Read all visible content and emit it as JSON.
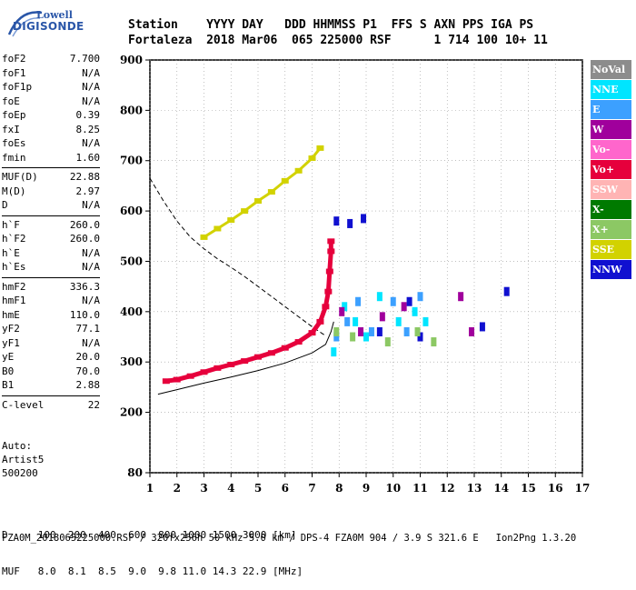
{
  "logo": {
    "line1": "Lowell",
    "line2": "DIGISONDE"
  },
  "header": {
    "row1": "Station    YYYY DAY   DDD HHMMSS P1  FFS S AXN PPS IGA PS",
    "row2": "Fortaleza  2018 Mar06  065 225000 RSF      1 714 100 10+ 11"
  },
  "params": [
    [
      {
        "k": "foF2",
        "v": "7.700"
      },
      {
        "k": "foF1",
        "v": "N/A"
      },
      {
        "k": "foF1p",
        "v": "N/A"
      },
      {
        "k": "foE",
        "v": "N/A"
      },
      {
        "k": "foEp",
        "v": "0.39"
      },
      {
        "k": "fxI",
        "v": "8.25"
      },
      {
        "k": "foEs",
        "v": "N/A"
      },
      {
        "k": "fmin",
        "v": "1.60"
      }
    ],
    [
      {
        "k": "MUF(D)",
        "v": "22.88"
      },
      {
        "k": "M(D)",
        "v": "2.97"
      },
      {
        "k": "D",
        "v": "N/A"
      }
    ],
    [
      {
        "k": "h`F",
        "v": "260.0"
      },
      {
        "k": "h`F2",
        "v": "260.0"
      },
      {
        "k": "h`E",
        "v": "N/A"
      },
      {
        "k": "h`Es",
        "v": "N/A"
      }
    ],
    [
      {
        "k": "hmF2",
        "v": "336.3"
      },
      {
        "k": "hmF1",
        "v": "N/A"
      },
      {
        "k": "hmE",
        "v": "110.0"
      },
      {
        "k": "yF2",
        "v": "77.1"
      },
      {
        "k": "yF1",
        "v": "N/A"
      },
      {
        "k": "yE",
        "v": "20.0"
      },
      {
        "k": "B0",
        "v": "70.0"
      },
      {
        "k": "B1",
        "v": "2.88"
      }
    ],
    [
      {
        "k": "C-level",
        "v": "22"
      }
    ]
  ],
  "auto": [
    "Auto:",
    "Artist5",
    "500200"
  ],
  "legend": [
    {
      "label": "NoVal",
      "color": "#8c8c8c"
    },
    {
      "label": "NNE",
      "color": "#00e5ff"
    },
    {
      "label": "E",
      "color": "#3ca0ff"
    },
    {
      "label": "W",
      "color": "#a0009c"
    },
    {
      "label": "Vo-",
      "color": "#ff66cc"
    },
    {
      "label": "Vo+",
      "color": "#e6003c"
    },
    {
      "label": "SSW",
      "color": "#ffb4b4"
    },
    {
      "label": "X-",
      "color": "#007a00"
    },
    {
      "label": "X+",
      "color": "#8cc864"
    },
    {
      "label": "SSE",
      "color": "#d2d200"
    },
    {
      "label": "NNW",
      "color": "#1010d0"
    }
  ],
  "footer": {
    "row1": "D     100  200  400  600  800 1000 1500 3000 [km]",
    "row2": "MUF   8.0  8.1  8.5  9.0  9.8 11.0 14.3 22.9 [MHz]"
  },
  "filename": "FZA0M_2018065225000.RSF / 320fx256h 50 kHz 5.0 km / DPS-4 FZA0M 904 / 3.9 S 321.6 E   Ion2Png 1.3.20",
  "chart_data": {
    "type": "scatter",
    "title": "",
    "xlabel": "",
    "ylabel": "",
    "xlim": [
      1,
      17
    ],
    "ylim": [
      80,
      900
    ],
    "x_ticks": [
      1,
      2,
      3,
      4,
      5,
      6,
      7,
      8,
      9,
      10,
      11,
      12,
      13,
      14,
      15,
      16,
      17
    ],
    "y_ticks": [
      80,
      200,
      300,
      400,
      500,
      600,
      700,
      800,
      900
    ],
    "grid": "dotted",
    "legend_placement": "right",
    "series": [
      {
        "name": "Vo+",
        "values": [
          [
            1.6,
            262
          ],
          [
            2.0,
            265
          ],
          [
            2.5,
            272
          ],
          [
            3.0,
            280
          ],
          [
            3.5,
            288
          ],
          [
            4.0,
            295
          ],
          [
            4.5,
            302
          ],
          [
            5.0,
            310
          ],
          [
            5.5,
            318
          ],
          [
            6.0,
            328
          ],
          [
            6.5,
            340
          ],
          [
            7.0,
            358
          ],
          [
            7.3,
            380
          ],
          [
            7.5,
            410
          ],
          [
            7.6,
            440
          ],
          [
            7.65,
            480
          ],
          [
            7.7,
            520
          ],
          [
            7.7,
            540
          ]
        ]
      },
      {
        "name": "SSE",
        "values": [
          [
            3.0,
            548
          ],
          [
            3.5,
            565
          ],
          [
            4.0,
            582
          ],
          [
            4.5,
            600
          ],
          [
            5.0,
            620
          ],
          [
            5.5,
            638
          ],
          [
            6.0,
            660
          ],
          [
            6.5,
            680
          ],
          [
            7.0,
            705
          ],
          [
            7.3,
            725
          ]
        ]
      },
      {
        "name": "NNE",
        "values": [
          [
            7.8,
            320
          ],
          [
            8.2,
            410
          ],
          [
            8.6,
            380
          ],
          [
            9.0,
            350
          ],
          [
            9.5,
            430
          ],
          [
            10.2,
            380
          ],
          [
            10.8,
            400
          ],
          [
            11.2,
            380
          ]
        ]
      },
      {
        "name": "E",
        "values": [
          [
            7.9,
            350
          ],
          [
            8.3,
            380
          ],
          [
            8.7,
            420
          ],
          [
            9.2,
            360
          ],
          [
            10.0,
            420
          ],
          [
            10.5,
            360
          ],
          [
            11.0,
            430
          ]
        ]
      },
      {
        "name": "W",
        "values": [
          [
            8.1,
            400
          ],
          [
            8.8,
            360
          ],
          [
            9.6,
            390
          ],
          [
            10.4,
            410
          ],
          [
            12.5,
            430
          ],
          [
            12.9,
            360
          ]
        ]
      },
      {
        "name": "NNW",
        "values": [
          [
            7.9,
            580
          ],
          [
            8.4,
            575
          ],
          [
            8.9,
            585
          ],
          [
            9.5,
            360
          ],
          [
            10.6,
            420
          ],
          [
            11.0,
            350
          ],
          [
            13.3,
            370
          ],
          [
            14.2,
            440
          ]
        ]
      },
      {
        "name": "X+",
        "values": [
          [
            7.9,
            360
          ],
          [
            8.5,
            350
          ],
          [
            9.8,
            340
          ],
          [
            10.9,
            360
          ],
          [
            11.5,
            340
          ]
        ]
      }
    ],
    "lines": [
      {
        "name": "MUF-D (dashed)",
        "style": "dashed",
        "values": [
          [
            1.0,
            665
          ],
          [
            1.5,
            620
          ],
          [
            2.0,
            580
          ],
          [
            2.5,
            548
          ],
          [
            3.0,
            525
          ],
          [
            3.5,
            505
          ],
          [
            4.0,
            488
          ],
          [
            4.5,
            470
          ],
          [
            5.0,
            450
          ],
          [
            5.5,
            430
          ],
          [
            6.0,
            410
          ],
          [
            6.5,
            390
          ],
          [
            7.0,
            370
          ],
          [
            7.5,
            352
          ]
        ]
      },
      {
        "name": "Profile (solid)",
        "style": "solid",
        "values": [
          [
            1.3,
            236
          ],
          [
            2.0,
            245
          ],
          [
            3.0,
            258
          ],
          [
            4.0,
            270
          ],
          [
            5.0,
            283
          ],
          [
            6.0,
            298
          ],
          [
            7.0,
            318
          ],
          [
            7.5,
            335
          ],
          [
            7.7,
            360
          ],
          [
            7.8,
            380
          ]
        ]
      }
    ]
  }
}
